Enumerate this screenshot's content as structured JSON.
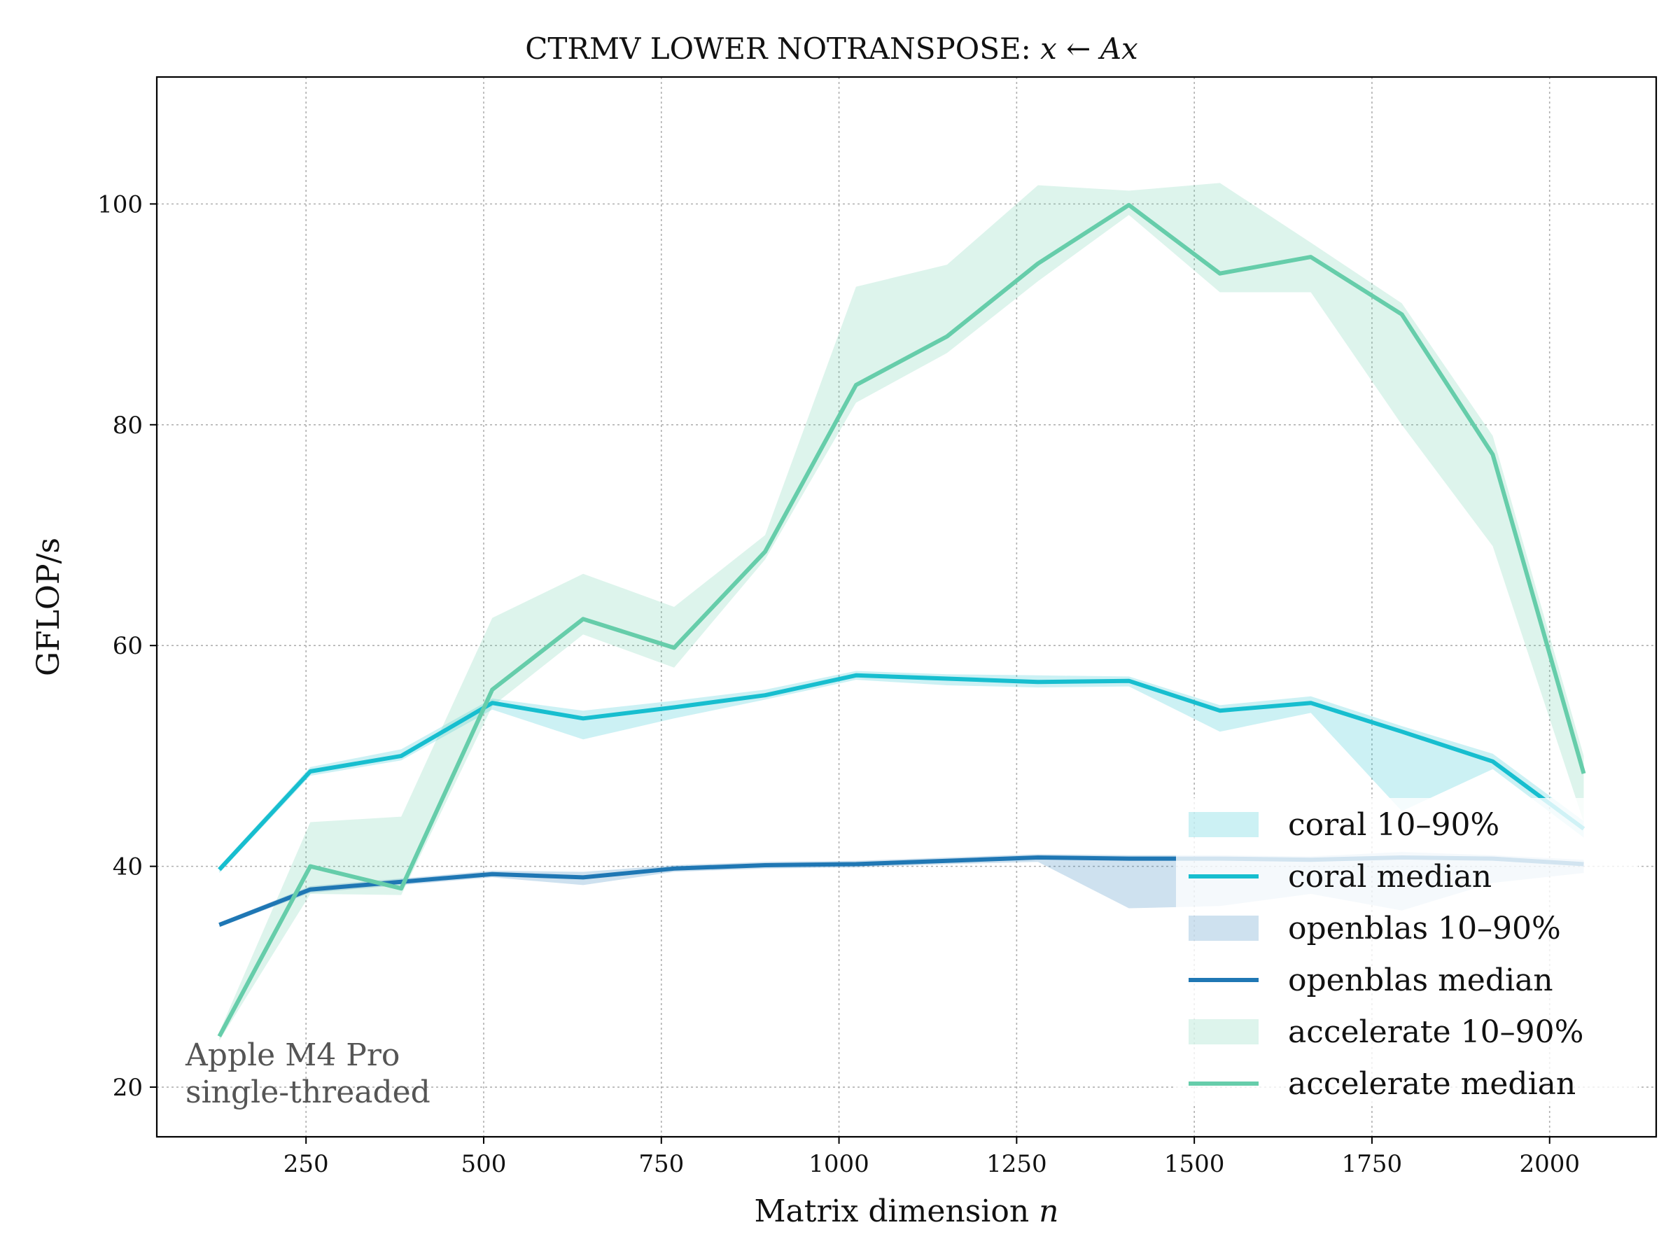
{
  "chart_data": {
    "type": "line",
    "title": "CTRMV LOWER NOTRANSPOSE: x ← Ax",
    "xlabel": "Matrix dimension n",
    "ylabel": "GFLOP/s",
    "xlim": [
      40,
      2150
    ],
    "ylim": [
      15.5,
      111.5
    ],
    "xticks": [
      250,
      500,
      750,
      1000,
      1250,
      1500,
      1750,
      2000
    ],
    "yticks": [
      20,
      40,
      60,
      80,
      100
    ],
    "grid": true,
    "legend_position": "lower-right",
    "annotation": [
      "Apple M4 Pro",
      "single-threaded"
    ],
    "x": [
      128,
      256,
      384,
      512,
      640,
      768,
      896,
      1024,
      1152,
      1280,
      1408,
      1536,
      1664,
      1792,
      1920,
      2048
    ],
    "series": [
      {
        "name": "coral",
        "color": "#17becf",
        "band_label": "coral 10–90%",
        "median_label": "coral median",
        "median": [
          39.7,
          48.6,
          50.0,
          54.8,
          53.4,
          54.4,
          55.5,
          57.3,
          57.0,
          56.7,
          56.8,
          54.1,
          54.8,
          52.2,
          49.5,
          43.4
        ],
        "p10": [
          39.4,
          48.2,
          49.6,
          54.2,
          51.5,
          53.4,
          55.1,
          56.9,
          56.4,
          56.2,
          56.3,
          52.2,
          53.9,
          45.0,
          48.8,
          42.6
        ],
        "p90": [
          40.0,
          49.0,
          50.6,
          55.2,
          54.1,
          55.0,
          56.0,
          57.7,
          57.4,
          57.3,
          57.2,
          54.6,
          55.4,
          52.7,
          50.2,
          44.1
        ]
      },
      {
        "name": "openblas",
        "color": "#1f77b4",
        "band_label": "openblas 10–90%",
        "median_label": "openblas median",
        "median": [
          34.7,
          37.9,
          38.6,
          39.3,
          39.0,
          39.8,
          40.1,
          40.2,
          40.5,
          40.8,
          40.7,
          40.7,
          40.6,
          40.8,
          40.7,
          40.2
        ],
        "p10": [
          34.5,
          37.6,
          38.3,
          39.0,
          38.3,
          39.5,
          39.8,
          39.9,
          40.2,
          40.4,
          36.2,
          36.4,
          37.5,
          36.0,
          38.5,
          39.4
        ],
        "p90": [
          34.9,
          38.2,
          38.9,
          39.6,
          39.5,
          40.1,
          40.4,
          40.5,
          40.8,
          41.1,
          41.0,
          41.0,
          40.9,
          41.3,
          41.0,
          40.6
        ]
      },
      {
        "name": "accelerate",
        "color": "#66cdaa",
        "band_label": "accelerate 10–90%",
        "median_label": "accelerate median",
        "median": [
          24.6,
          40.0,
          38.0,
          56.0,
          62.4,
          59.8,
          68.5,
          83.6,
          88.0,
          94.6,
          99.9,
          93.7,
          95.2,
          90.0,
          77.3,
          48.4
        ],
        "p10": [
          24.2,
          37.5,
          37.4,
          54.5,
          61.0,
          58.0,
          67.8,
          82.0,
          86.5,
          93.0,
          99.0,
          92.0,
          92.0,
          80.0,
          69.0,
          44.0
        ],
        "p90": [
          25.0,
          44.0,
          44.5,
          62.5,
          66.5,
          63.5,
          70.0,
          92.5,
          94.5,
          101.7,
          101.2,
          101.9,
          96.5,
          91.0,
          79.0,
          50.0
        ]
      }
    ]
  }
}
